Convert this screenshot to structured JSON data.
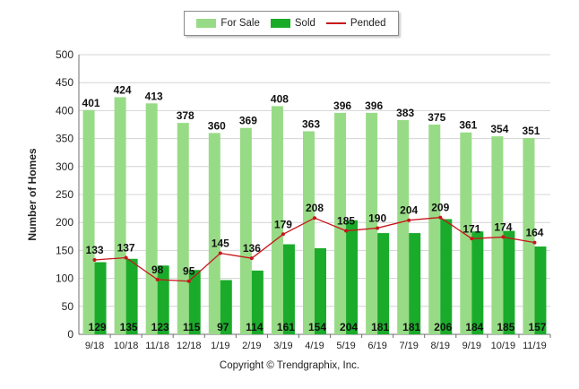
{
  "chart_data": {
    "type": "bar",
    "categories": [
      "9/18",
      "10/18",
      "11/18",
      "12/18",
      "1/19",
      "2/19",
      "3/19",
      "4/19",
      "5/19",
      "6/19",
      "7/19",
      "8/19",
      "9/19",
      "10/19",
      "11/19"
    ],
    "series": [
      {
        "name": "For Sale",
        "kind": "bar",
        "color": "#98db86",
        "values": [
          401,
          424,
          413,
          378,
          360,
          369,
          408,
          363,
          396,
          396,
          383,
          375,
          361,
          354,
          351
        ]
      },
      {
        "name": "Sold",
        "kind": "bar",
        "color": "#1aab2a",
        "values": [
          129,
          135,
          123,
          115,
          97,
          114,
          161,
          154,
          204,
          181,
          181,
          206,
          184,
          185,
          157
        ]
      },
      {
        "name": "Pended",
        "kind": "line",
        "color": "#c8151b",
        "values": [
          133,
          137,
          98,
          95,
          145,
          136,
          179,
          208,
          185,
          190,
          204,
          209,
          171,
          174,
          164
        ]
      }
    ],
    "ylabel": "Number of Homes",
    "ylim": [
      0,
      500
    ],
    "yticks": [
      0,
      50,
      100,
      150,
      200,
      250,
      300,
      350,
      400,
      450,
      500
    ],
    "grid": true,
    "legend_position": "top-center"
  },
  "footer": {
    "copyright": "Copyright © Trendgraphix, Inc."
  }
}
